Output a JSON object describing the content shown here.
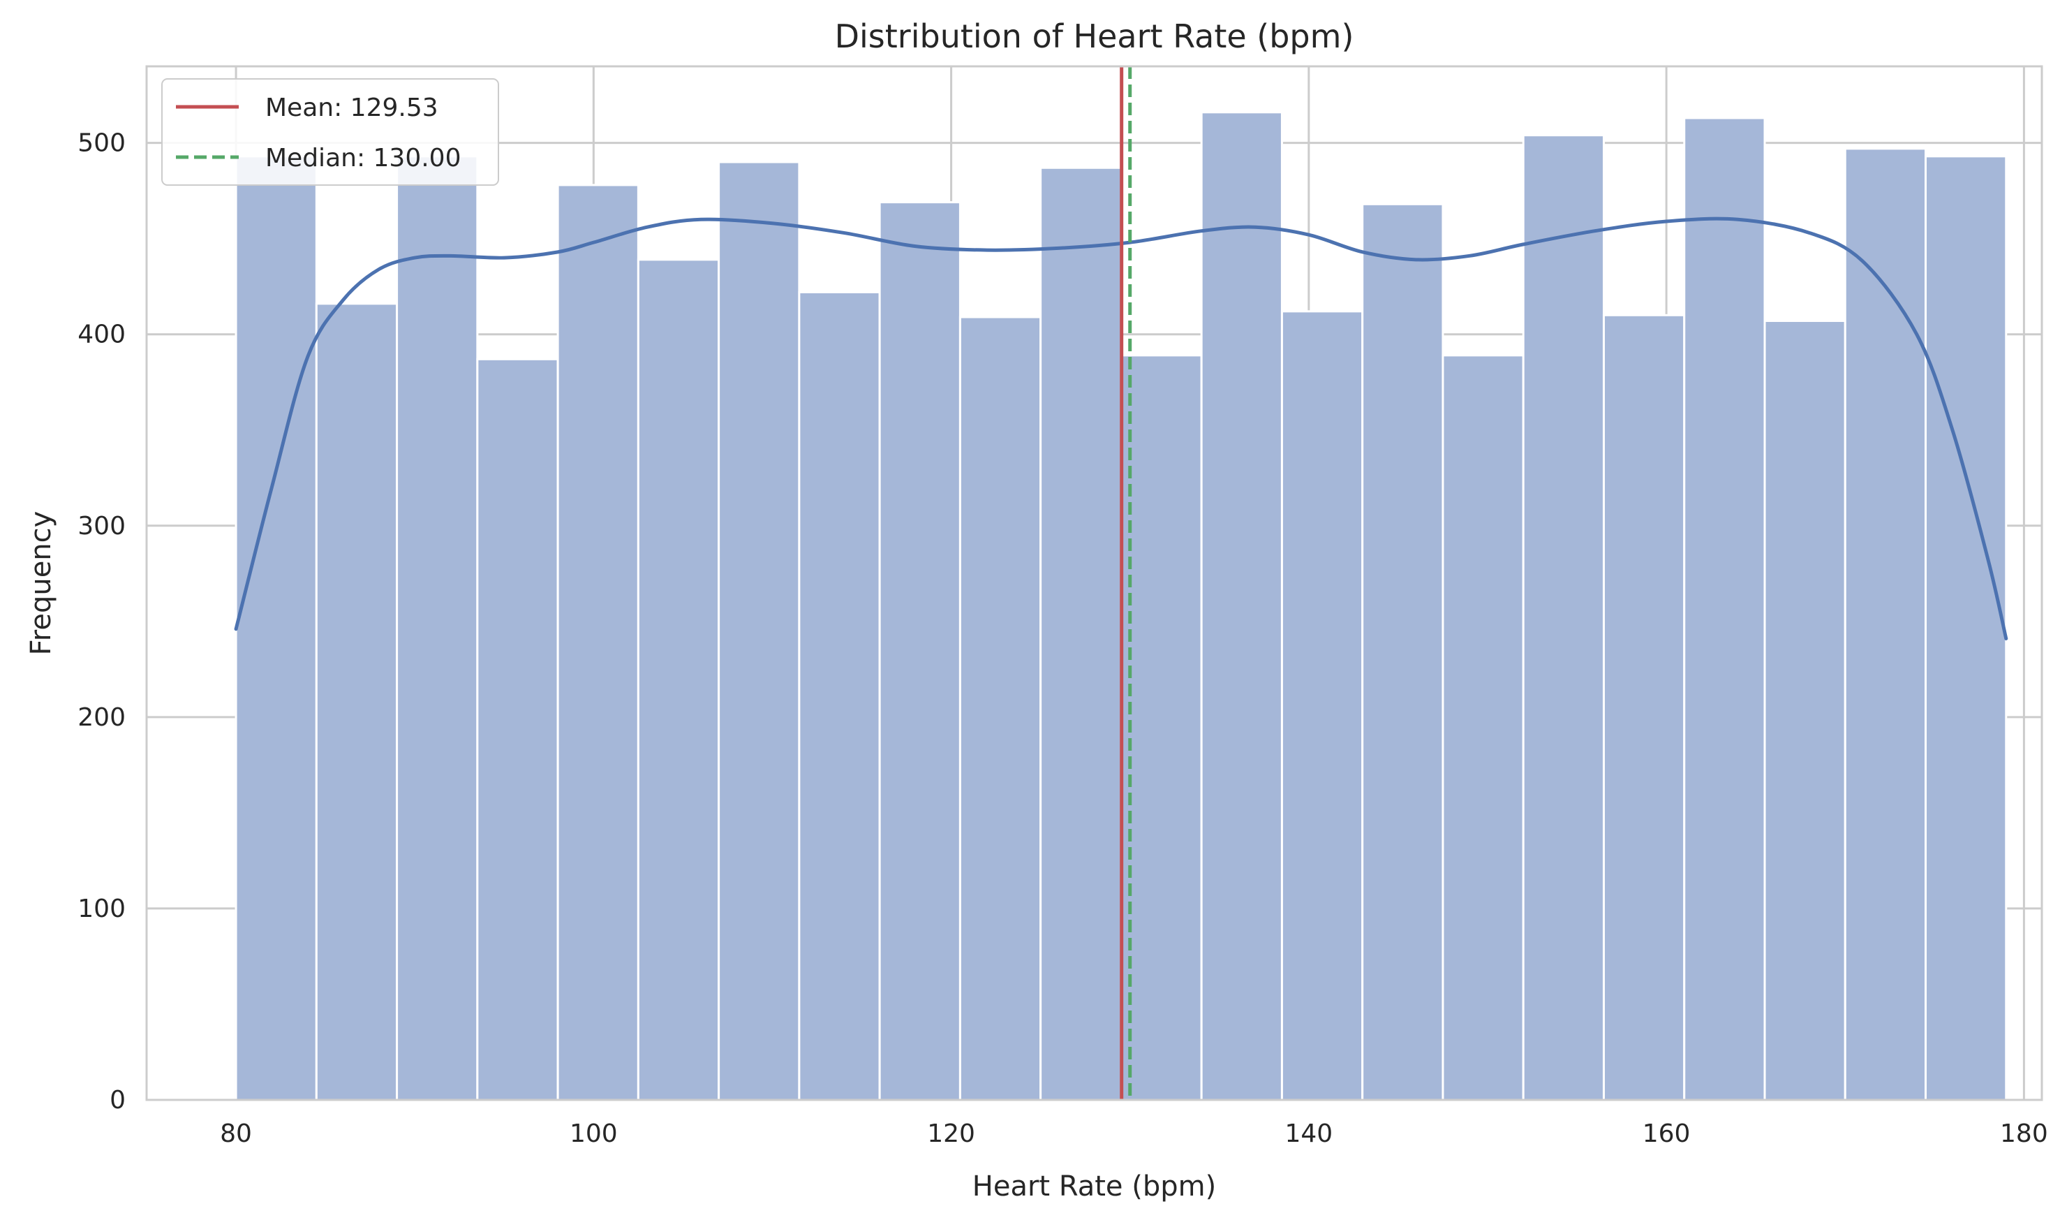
{
  "chart_data": {
    "type": "bar",
    "title": "Distribution of Heart Rate (bpm)",
    "xlabel": "Heart Rate (bpm)",
    "ylabel": "Frequency",
    "xlim": [
      75,
      181
    ],
    "ylim": [
      0,
      540
    ],
    "xticks": [
      80,
      100,
      120,
      140,
      160,
      180
    ],
    "yticks": [
      0,
      100,
      200,
      300,
      400,
      500
    ],
    "grid": true,
    "legend_position": "top-left",
    "bar_color": "#a5b7d8",
    "bin_edges": [
      80,
      84.5,
      89,
      93.5,
      98,
      102.5,
      107,
      111.5,
      116,
      120.5,
      125,
      129.5,
      134,
      138.5,
      143,
      147.5,
      152,
      156.5,
      161,
      165.5,
      170,
      174.5,
      179
    ],
    "values": [
      493,
      416,
      493,
      387,
      478,
      439,
      490,
      422,
      469,
      409,
      487,
      389,
      516,
      412,
      468,
      389,
      504,
      410,
      513,
      407,
      497,
      493
    ],
    "kde": {
      "name": "KDE",
      "color": "#4c72b0",
      "x": [
        80,
        82,
        84,
        86,
        88,
        90,
        92,
        95,
        98,
        100,
        103,
        106,
        110,
        114,
        118,
        122,
        126,
        130,
        134,
        137,
        140,
        143,
        146,
        149,
        152,
        156,
        160,
        164,
        168,
        171,
        174,
        176,
        178,
        179
      ],
      "y": [
        246,
        320,
        388,
        418,
        434,
        440,
        441,
        440,
        443,
        448,
        456,
        460,
        458,
        453,
        446,
        444,
        445,
        448,
        454,
        456,
        452,
        443,
        439,
        441,
        447,
        454,
        459,
        460,
        453,
        438,
        400,
        350,
        282,
        241
      ]
    },
    "reference_lines": [
      {
        "name": "Mean: 129.53",
        "value": 129.53,
        "color": "#c44e52",
        "style": "solid"
      },
      {
        "name": "Median: 130.00",
        "value": 130.0,
        "color": "#55a868",
        "style": "dashed"
      }
    ]
  }
}
